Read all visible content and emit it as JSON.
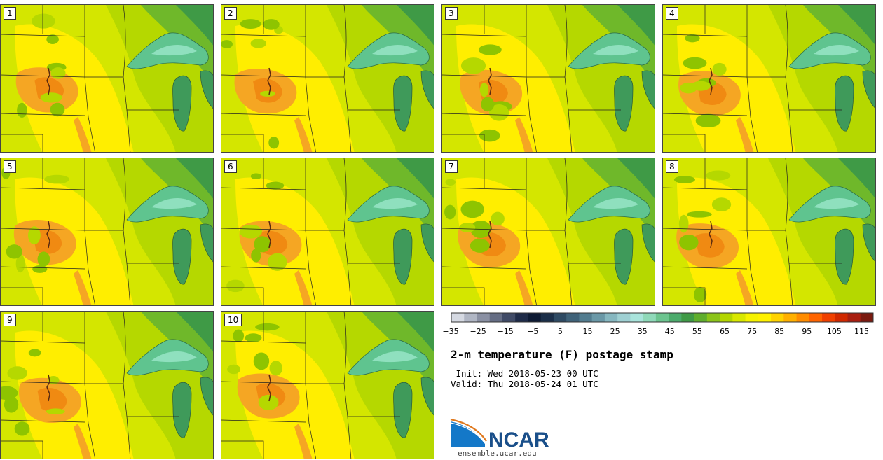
{
  "title": "2-m temperature (F) postage stamp",
  "init": " Init: Wed 2018-05-23 00 UTC",
  "valid": "Valid: Thu 2018-05-24 01 UTC",
  "logo": {
    "name": "NCAR",
    "url": "ensemble.ucar.edu"
  },
  "members": [
    "1",
    "2",
    "3",
    "4",
    "5",
    "6",
    "7",
    "8",
    "9",
    "10"
  ],
  "colorbar": {
    "tick_labels": [
      "−35",
      "−25",
      "−15",
      "−5",
      "5",
      "15",
      "25",
      "35",
      "45",
      "55",
      "65",
      "75",
      "85",
      "95",
      "105",
      "115"
    ],
    "colors": [
      "#d5d9e2",
      "#b0b6c4",
      "#8a90a3",
      "#656d84",
      "#3f4a66",
      "#1e2b48",
      "#0d1a33",
      "#1a2e48",
      "#2e4a63",
      "#3f6279",
      "#527c8f",
      "#6a98a7",
      "#86b7c0",
      "#9fd0d3",
      "#a9e4dc",
      "#8fd9b9",
      "#6cc48f",
      "#4cab6c",
      "#3f9a46",
      "#5fae2d",
      "#8bc41a",
      "#b3d600",
      "#d8e800",
      "#f6f300",
      "#fff200",
      "#ffd300",
      "#ffb000",
      "#ff8c00",
      "#ff6400",
      "#f04000",
      "#d02800",
      "#a81e10",
      "#7a1a10"
    ]
  },
  "palette": {
    "warm": "#f5a623",
    "hot": "#f08a12",
    "mid": "#d4e600",
    "yellow": "#ffee00",
    "green": "#6fb82a",
    "dark_green": "#3f9a46",
    "lake": "#5fc48f",
    "lake_light": "#8fe0be"
  }
}
